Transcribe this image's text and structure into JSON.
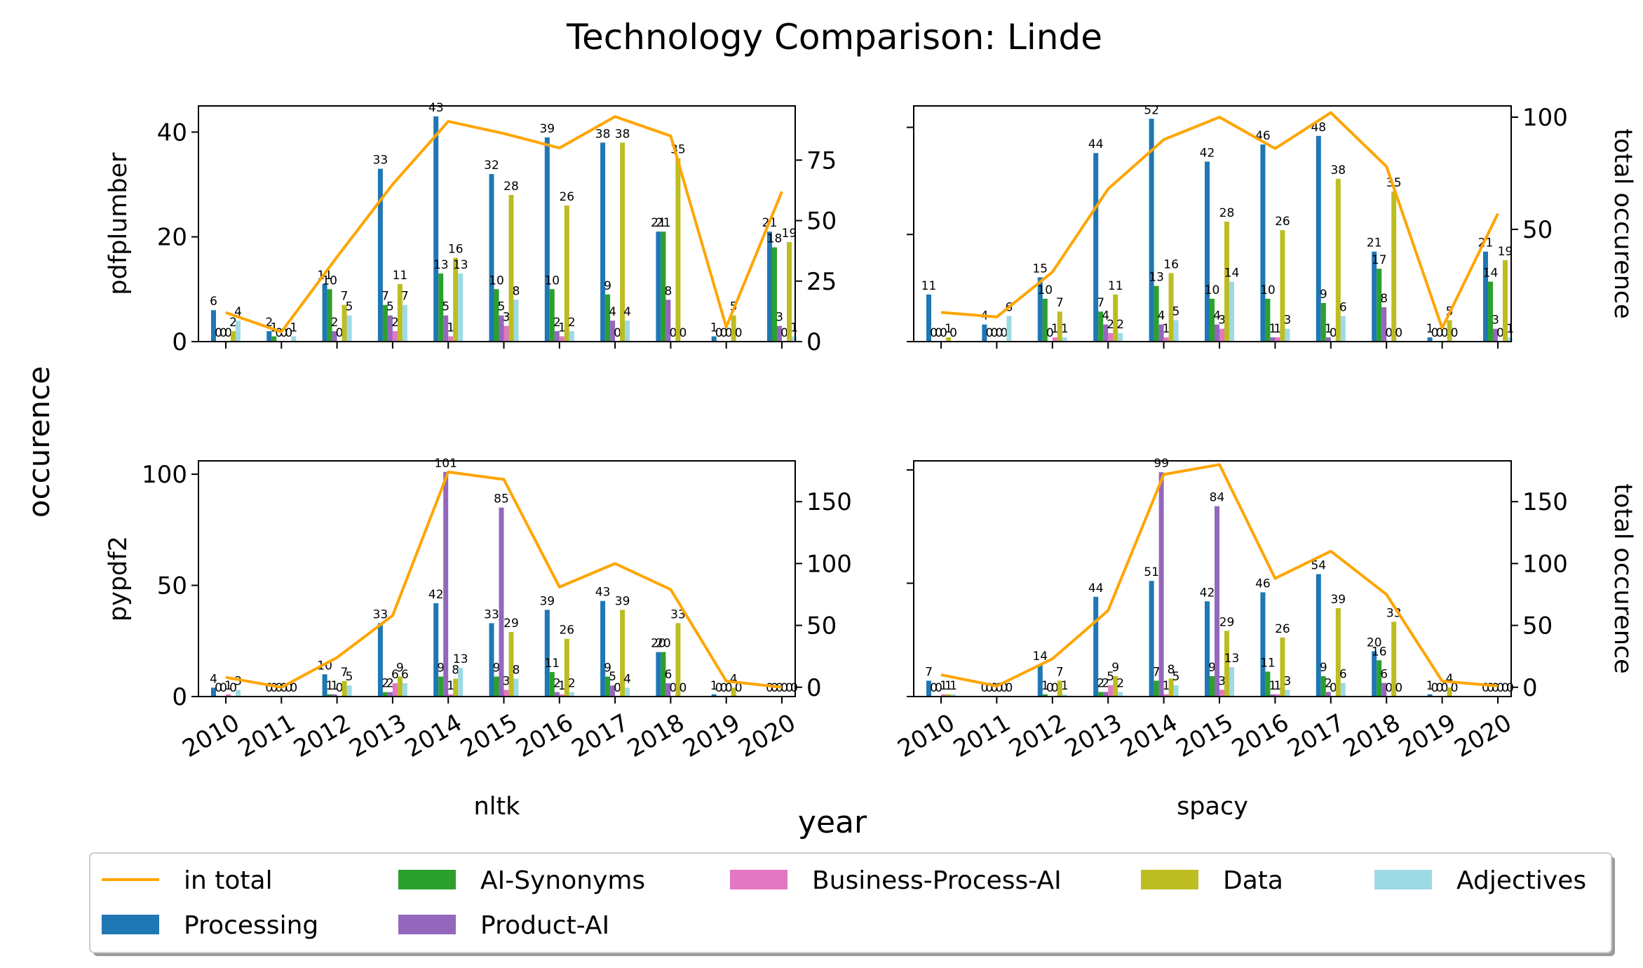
{
  "figure": {
    "title": "Technology Comparison: Linde",
    "xlabel": "year",
    "ylabel": "occurence",
    "y2label": "total occurence"
  },
  "legend": {
    "placement": "bottom",
    "entries": [
      "in total",
      "Processing",
      "AI-Synonyms",
      "Product-AI",
      "Business-Process-AI",
      "Data",
      "Adjectives"
    ]
  },
  "colors": {
    "in total": "#ffa500",
    "Processing": "#1f77b4",
    "AI-Synonyms": "#2ca02c",
    "Product-AI": "#9467bd",
    "Business-Process-AI": "#e377c2",
    "Data": "#bcbd22",
    "Adjectives": "#9edae5"
  },
  "chart_data": [
    {
      "type": "bar",
      "row_label": "pdfplumber",
      "col_label": "",
      "categories": [
        "2010",
        "2011",
        "2012",
        "2013",
        "2014",
        "2015",
        "2016",
        "2017",
        "2018",
        "2019",
        "2020"
      ],
      "ylim": [
        0,
        45
      ],
      "yticks": [
        0,
        20,
        40
      ],
      "y2lim": [
        0,
        97.4
      ],
      "y2ticks": [
        0,
        25,
        50,
        75
      ],
      "series": [
        {
          "name": "Processing",
          "values": [
            6,
            2,
            11,
            33,
            43,
            32,
            39,
            38,
            21,
            1,
            21
          ]
        },
        {
          "name": "AI-Synonyms",
          "values": [
            0,
            1,
            10,
            7,
            13,
            10,
            10,
            9,
            21,
            0,
            18
          ]
        },
        {
          "name": "Product-AI",
          "values": [
            0,
            0,
            2,
            5,
            5,
            5,
            2,
            4,
            8,
            0,
            3
          ]
        },
        {
          "name": "Business-Process-AI",
          "values": [
            0,
            0,
            0,
            2,
            1,
            3,
            1,
            0,
            0,
            0,
            0
          ]
        },
        {
          "name": "Data",
          "values": [
            2,
            0,
            7,
            11,
            16,
            28,
            26,
            38,
            35,
            5,
            19
          ]
        },
        {
          "name": "Adjectives",
          "values": [
            4,
            1,
            5,
            7,
            13,
            8,
            2,
            4,
            0,
            0,
            1
          ]
        }
      ],
      "total": [
        12,
        4,
        35,
        65,
        91,
        86,
        80,
        93,
        85,
        6,
        62
      ]
    },
    {
      "type": "bar",
      "row_label": "",
      "col_label": "",
      "categories": [
        "2010",
        "2011",
        "2012",
        "2013",
        "2014",
        "2015",
        "2016",
        "2017",
        "2018",
        "2019",
        "2020"
      ],
      "ylim": [
        0,
        55
      ],
      "yticks": [
        0,
        25,
        50
      ],
      "y2lim": [
        0,
        105
      ],
      "y2ticks": [
        50,
        100
      ],
      "series": [
        {
          "name": "Processing",
          "values": [
            11,
            4,
            15,
            44,
            52,
            42,
            46,
            48,
            21,
            1,
            21
          ]
        },
        {
          "name": "AI-Synonyms",
          "values": [
            0,
            0,
            10,
            7,
            13,
            10,
            10,
            9,
            17,
            0,
            14
          ]
        },
        {
          "name": "Product-AI",
          "values": [
            0,
            0,
            0,
            4,
            4,
            4,
            1,
            1,
            8,
            0,
            3
          ]
        },
        {
          "name": "Business-Process-AI",
          "values": [
            0,
            0,
            1,
            2,
            1,
            3,
            1,
            0,
            0,
            0,
            0
          ]
        },
        {
          "name": "Data",
          "values": [
            1,
            0,
            7,
            11,
            16,
            28,
            26,
            38,
            35,
            5,
            19
          ]
        },
        {
          "name": "Adjectives",
          "values": [
            0,
            6,
            1,
            2,
            5,
            14,
            3,
            6,
            0,
            0,
            1
          ]
        }
      ],
      "total": [
        13,
        11,
        31,
        68,
        90,
        100,
        86,
        102,
        78,
        6,
        57
      ]
    },
    {
      "type": "bar",
      "row_label": "pypdf2",
      "col_label": "nltk",
      "categories": [
        "2010",
        "2011",
        "2012",
        "2013",
        "2014",
        "2015",
        "2016",
        "2017",
        "2018",
        "2019",
        "2020"
      ],
      "ylim": [
        0,
        106
      ],
      "yticks": [
        0,
        50,
        100
      ],
      "y2lim": [
        -7.5,
        183
      ],
      "y2ticks": [
        0,
        50,
        100,
        150
      ],
      "series": [
        {
          "name": "Processing",
          "values": [
            4,
            0,
            10,
            33,
            42,
            33,
            39,
            43,
            20,
            1,
            0
          ]
        },
        {
          "name": "AI-Synonyms",
          "values": [
            0,
            0,
            1,
            2,
            9,
            9,
            11,
            9,
            20,
            0,
            0
          ]
        },
        {
          "name": "Product-AI",
          "values": [
            0,
            0,
            1,
            2,
            101,
            85,
            2,
            5,
            6,
            0,
            0
          ]
        },
        {
          "name": "Business-Process-AI",
          "values": [
            1,
            0,
            0,
            6,
            1,
            3,
            1,
            0,
            0,
            0,
            0
          ]
        },
        {
          "name": "Data",
          "values": [
            0,
            0,
            7,
            9,
            8,
            29,
            26,
            39,
            33,
            4,
            0
          ]
        },
        {
          "name": "Adjectives",
          "values": [
            3,
            0,
            5,
            6,
            13,
            8,
            2,
            4,
            0,
            0,
            0
          ]
        }
      ],
      "total": [
        8,
        0,
        24,
        58,
        174,
        168,
        81,
        100,
        79,
        5,
        0
      ]
    },
    {
      "type": "bar",
      "row_label": "",
      "col_label": "spacy",
      "categories": [
        "2010",
        "2011",
        "2012",
        "2013",
        "2014",
        "2015",
        "2016",
        "2017",
        "2018",
        "2019",
        "2020"
      ],
      "ylim": [
        0,
        104
      ],
      "yticks": [
        0,
        50,
        100
      ],
      "y2lim": [
        -7.5,
        183
      ],
      "y2ticks": [
        0,
        50,
        100,
        150
      ],
      "series": [
        {
          "name": "Processing",
          "values": [
            7,
            0,
            14,
            44,
            51,
            42,
            46,
            54,
            20,
            1,
            0
          ]
        },
        {
          "name": "AI-Synonyms",
          "values": [
            0,
            0,
            1,
            2,
            7,
            9,
            11,
            9,
            16,
            0,
            0
          ]
        },
        {
          "name": "Product-AI",
          "values": [
            0,
            0,
            0,
            2,
            99,
            84,
            1,
            2,
            6,
            0,
            0
          ]
        },
        {
          "name": "Business-Process-AI",
          "values": [
            1,
            0,
            0,
            5,
            1,
            3,
            1,
            0,
            0,
            0,
            0
          ]
        },
        {
          "name": "Data",
          "values": [
            1,
            0,
            7,
            9,
            8,
            29,
            26,
            39,
            33,
            4,
            0
          ]
        },
        {
          "name": "Adjectives",
          "values": [
            1,
            0,
            1,
            2,
            5,
            13,
            3,
            6,
            0,
            0,
            0
          ]
        }
      ],
      "total": [
        10,
        1,
        23,
        62,
        172,
        180,
        88,
        110,
        75,
        5,
        1
      ]
    }
  ]
}
